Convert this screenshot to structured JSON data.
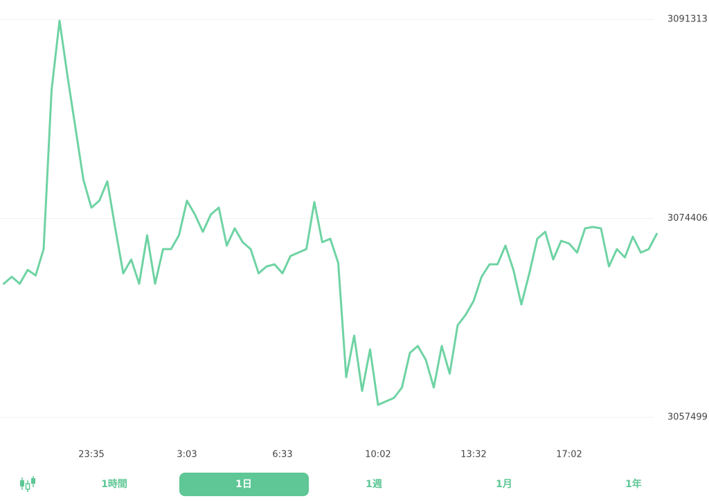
{
  "chart_data": {
    "type": "line",
    "color": "#6ed3a3",
    "grid": true,
    "categories": [
      null,
      null,
      null,
      null,
      null,
      null,
      null,
      null,
      null,
      null,
      null,
      "23:35",
      null,
      null,
      null,
      null,
      null,
      null,
      null,
      null,
      null,
      null,
      null,
      "3:03",
      null,
      null,
      null,
      null,
      null,
      null,
      null,
      null,
      null,
      null,
      null,
      "6:33",
      null,
      null,
      null,
      null,
      null,
      null,
      null,
      null,
      null,
      null,
      null,
      "10:02",
      null,
      null,
      null,
      null,
      null,
      null,
      null,
      null,
      null,
      null,
      null,
      "13:32",
      null,
      null,
      null,
      null,
      null,
      null,
      null,
      null,
      null,
      null,
      null,
      "17:02",
      null,
      null,
      null,
      null,
      null,
      null,
      null,
      null,
      null,
      null,
      null
    ],
    "values": [
      3068849,
      3069437,
      3068849,
      3070025,
      3069554,
      3071789,
      3085315,
      3091195,
      3086491,
      3082080,
      3077670,
      3075318,
      3075906,
      3077552,
      3073553,
      3069731,
      3070907,
      3068849,
      3072965,
      3068849,
      3071789,
      3071789,
      3072965,
      3075906,
      3074729,
      3073259,
      3074729,
      3075318,
      3072083,
      3073553,
      3072377,
      3071789,
      3069731,
      3070319,
      3070495,
      3069731,
      3071201,
      3071495,
      3071789,
      3075788,
      3072377,
      3072671,
      3070613,
      3060910,
      3064438,
      3059734,
      3063262,
      3058558,
      3058852,
      3059146,
      3060028,
      3062968,
      3063556,
      3062380,
      3060028,
      3063556,
      3061204,
      3065320,
      3066202,
      3067379,
      3069437,
      3070495,
      3070495,
      3072083,
      3070025,
      3067085,
      3069731,
      3072671,
      3073259,
      3070907,
      3072495,
      3072260,
      3071495,
      3073553,
      3073671,
      3073553,
      3070319,
      3071789,
      3071083,
      3072848,
      3071495,
      3071789,
      3073083
    ],
    "ylim": [
      3057499,
      3091313
    ],
    "yticks": [
      3057499,
      3074406,
      3091313
    ]
  },
  "controls": {
    "periods": [
      "1時間",
      "1日",
      "1週",
      "1月",
      "1年"
    ],
    "selected": 1
  }
}
